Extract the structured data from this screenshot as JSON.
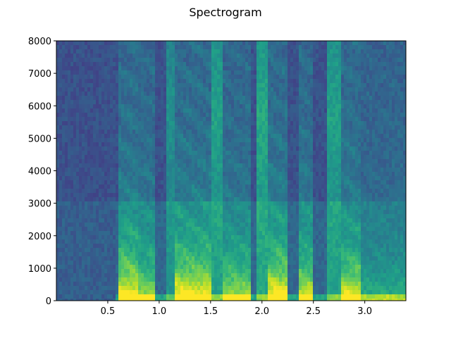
{
  "chart_data": {
    "type": "heatmap",
    "title": "Spectrogram",
    "xlabel": "",
    "ylabel": "",
    "xlim": [
      0,
      3.4
    ],
    "ylim": [
      0,
      8000
    ],
    "xticks": [
      "0.5",
      "1.0",
      "1.5",
      "2.0",
      "2.5",
      "3.0"
    ],
    "yticks": [
      "0",
      "1000",
      "2000",
      "3000",
      "4000",
      "5000",
      "6000",
      "7000",
      "8000"
    ],
    "colormap": "viridis",
    "colormap_colors": [
      "#440154",
      "#482878",
      "#3e4989",
      "#31688e",
      "#26828e",
      "#1f9e89",
      "#35b779",
      "#6ece58",
      "#b5de2b",
      "#fde725"
    ],
    "grid": false,
    "segments": [
      {
        "start": 0.0,
        "end": 0.58,
        "kind": "silence",
        "intensity": 0.0
      },
      {
        "start": 0.6,
        "end": 0.8,
        "kind": "voiced",
        "intensity": 0.95
      },
      {
        "start": 0.8,
        "end": 0.97,
        "kind": "voiced",
        "intensity": 0.7
      },
      {
        "start": 0.97,
        "end": 1.08,
        "kind": "silence",
        "intensity": 0.1
      },
      {
        "start": 1.08,
        "end": 1.15,
        "kind": "fricative",
        "intensity": 0.6
      },
      {
        "start": 1.15,
        "end": 1.5,
        "kind": "voiced",
        "intensity": 0.95
      },
      {
        "start": 1.5,
        "end": 1.63,
        "kind": "fricative",
        "intensity": 0.8
      },
      {
        "start": 1.63,
        "end": 1.88,
        "kind": "voiced",
        "intensity": 0.7
      },
      {
        "start": 1.88,
        "end": 1.95,
        "kind": "silence",
        "intensity": 0.1
      },
      {
        "start": 1.95,
        "end": 2.05,
        "kind": "fricative",
        "intensity": 0.9
      },
      {
        "start": 2.05,
        "end": 2.25,
        "kind": "voiced",
        "intensity": 0.95
      },
      {
        "start": 2.25,
        "end": 2.35,
        "kind": "silence",
        "intensity": 0.15
      },
      {
        "start": 2.35,
        "end": 2.5,
        "kind": "voiced",
        "intensity": 0.8
      },
      {
        "start": 2.5,
        "end": 2.62,
        "kind": "silence",
        "intensity": 0.2
      },
      {
        "start": 2.62,
        "end": 2.77,
        "kind": "fricative",
        "intensity": 0.8
      },
      {
        "start": 2.78,
        "end": 2.95,
        "kind": "voiced",
        "intensity": 0.85
      },
      {
        "start": 2.95,
        "end": 3.4,
        "kind": "voiced",
        "intensity": 0.35
      }
    ]
  }
}
